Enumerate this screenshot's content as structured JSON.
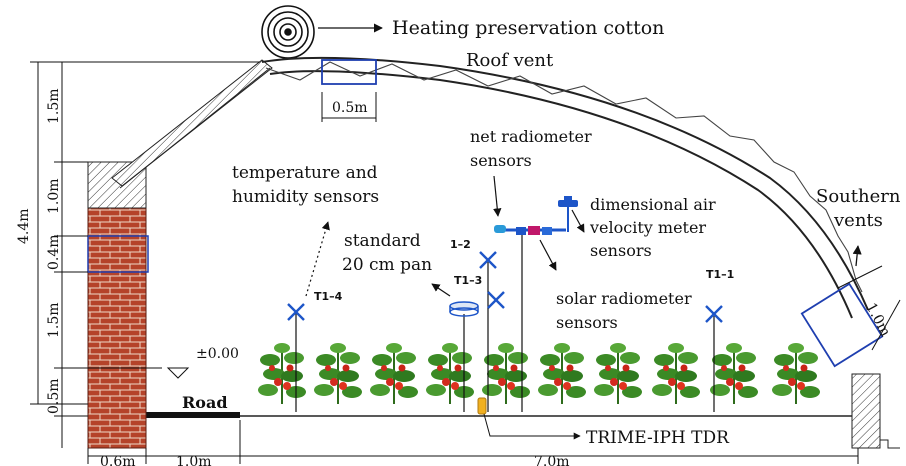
{
  "labels": {
    "cotton": "Heating preservation cotton",
    "roof_vent": "Roof vent",
    "temp_line1": "temperature and",
    "temp_line2": "humidity sensors",
    "net_line1": "net radiometer",
    "net_line2": "sensors",
    "dim_line1": "dimensional air",
    "dim_line2": "velocity meter",
    "dim_line3": "sensors",
    "southern_line1": "Southern",
    "southern_line2": "vents",
    "pan_line1": "standard",
    "pan_line2": "20 cm pan",
    "solar_line1": "solar radiometer",
    "solar_line2": "sensors",
    "tdr": "TRIME-IPH TDR",
    "road": "Road",
    "elevation": "±0.00"
  },
  "sensor_ids": {
    "t1_4": "T1–4",
    "t1_2": "1–2",
    "t1_3": "T1–3",
    "t1_1": "T1–1"
  },
  "dimensions": {
    "vent_width": "0.5m",
    "left_1_5_top": "1.5m",
    "left_1_0": "1.0m",
    "left_0_4": "0.4m",
    "left_1_5_bottom": "1.5m",
    "left_0_5": "0.5m",
    "total_height": "4.4m",
    "bottom_0_6": "0.6m",
    "bottom_1_0": "1.0m",
    "bottom_7_0": "7.0m",
    "south_vent": "1.0m"
  },
  "colors": {
    "brick": "#b5432a",
    "vent_outline": "#1f3fb0",
    "sensor_blue": "#1d55c8",
    "plant_green": "#3b8a25",
    "tomato_red": "#d22a1e"
  }
}
